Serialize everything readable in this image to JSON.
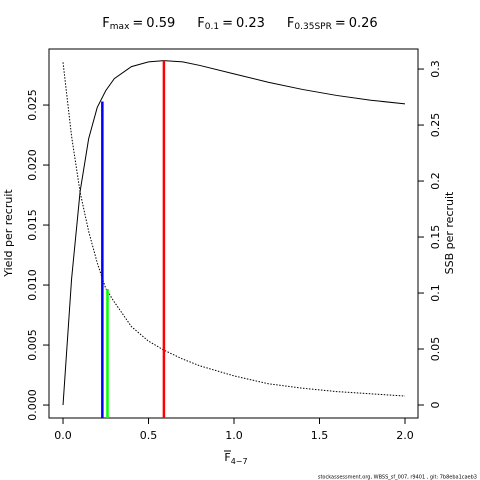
{
  "chart_data": {
    "type": "line",
    "equals": "=",
    "reference_lines": [
      {
        "symbol": "F",
        "subscript": "max",
        "x": 0.59,
        "y": 0.0287,
        "axis": "y",
        "color": "#ff0000"
      },
      {
        "symbol": "F",
        "subscript": "0.1",
        "x": 0.23,
        "y": 0.0253,
        "axis": "y",
        "color": "#0000ff"
      },
      {
        "symbol": "F",
        "subscript": "0.35SPR",
        "x": 0.26,
        "y": 0.1036,
        "axis": "y2",
        "color": "#00ff00"
      }
    ],
    "xlabel": "F",
    "xlabel_subscript": "4−7",
    "ylabel": "Yield per recruit",
    "y2label": "SSB per recruit",
    "footer": "stockassessment.org, WBSS_sf_007, r9401 , git: 7b8eba1caeb3",
    "x": [
      0,
      0.05,
      0.1,
      0.15,
      0.2,
      0.25,
      0.3,
      0.4,
      0.5,
      0.59,
      0.7,
      0.8,
      1.0,
      1.2,
      1.4,
      1.6,
      1.8,
      2.0
    ],
    "series": [
      {
        "name": "Yield per recruit",
        "color": "#000000",
        "dash": "solid",
        "axis": "y",
        "values": [
          0,
          0.0105,
          0.0178,
          0.0222,
          0.0248,
          0.0262,
          0.0272,
          0.0282,
          0.0286,
          0.0287,
          0.0286,
          0.0283,
          0.0276,
          0.0269,
          0.0263,
          0.0258,
          0.0254,
          0.0251
        ]
      },
      {
        "name": "SSB per recruit",
        "color": "#000000",
        "dash": "dotted",
        "axis": "y2",
        "values": [
          0.306,
          0.24,
          0.19,
          0.155,
          0.127,
          0.104,
          0.092,
          0.07,
          0.057,
          0.049,
          0.041,
          0.035,
          0.026,
          0.019,
          0.015,
          0.012,
          0.01,
          0.008
        ]
      }
    ],
    "xlim": [
      -0.082,
      2.076
    ],
    "xticks": [
      {
        "value": 0,
        "label": "0.0"
      },
      0.5,
      {
        "value": 1,
        "label": "1.0"
      },
      1.5,
      {
        "value": 2,
        "label": "2.0"
      }
    ],
    "ylim": [
      -0.00108,
      0.02967
    ],
    "yticks": [
      {
        "value": 0,
        "label": "0.000"
      },
      {
        "value": 0.005,
        "label": "0.005"
      },
      {
        "value": 0.01,
        "label": "0.010"
      },
      {
        "value": 0.015,
        "label": "0.015"
      },
      {
        "value": 0.02,
        "label": "0.020"
      },
      {
        "value": 0.025,
        "label": "0.025"
      }
    ],
    "y2lim": [
      -0.0116,
      0.3179
    ],
    "y2ticks": [
      0,
      0.05,
      0.1,
      0.15,
      0.2,
      0.25,
      0.3
    ]
  }
}
